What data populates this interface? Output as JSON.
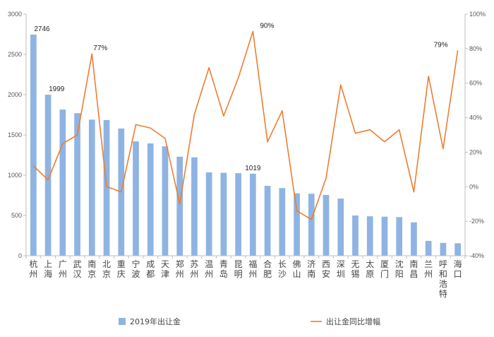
{
  "chart_data": {
    "type": "bar",
    "title": "",
    "xlabel": "",
    "ylabel": "",
    "categories": [
      "杭州",
      "上海",
      "广州",
      "武汉",
      "南京",
      "北京",
      "重庆",
      "宁波",
      "成都",
      "天津",
      "郑州",
      "苏州",
      "温州",
      "青岛",
      "昆明",
      "福州",
      "合肥",
      "长沙",
      "佛山",
      "济南",
      "西安",
      "深圳",
      "无锡",
      "太原",
      "厦门",
      "沈阳",
      "南昌",
      "兰州",
      "呼和浩特",
      "海口"
    ],
    "ylim": [
      0,
      3000
    ],
    "y_ticks": [
      "0",
      "500",
      "1000",
      "1500",
      "2000",
      "2500",
      "3000"
    ],
    "y2lim": [
      -40,
      100
    ],
    "y2_ticks": [
      "-40%",
      "-20%",
      "0%",
      "20%",
      "40%",
      "60%",
      "80%",
      "100%"
    ],
    "series": [
      {
        "name": "2019年出让金",
        "type": "bar",
        "axis": "left",
        "color": "#8fb4e3",
        "values": [
          2746,
          1999,
          1815,
          1770,
          1690,
          1685,
          1580,
          1420,
          1395,
          1358,
          1230,
          1222,
          1035,
          1030,
          1025,
          1019,
          868,
          840,
          775,
          770,
          755,
          710,
          500,
          490,
          485,
          480,
          415,
          185,
          160,
          155
        ]
      },
      {
        "name": "出让金同比增幅",
        "type": "line",
        "axis": "right",
        "color": "#ed7d31",
        "values": [
          12,
          4,
          25,
          30,
          77,
          0,
          -3,
          36,
          34,
          28,
          -10,
          42,
          69,
          41,
          63,
          90,
          26,
          44,
          -14,
          -19,
          5,
          59,
          31,
          33,
          26,
          33,
          -3,
          64,
          22,
          79
        ]
      }
    ],
    "data_labels": [
      {
        "series": 0,
        "index": 0,
        "text": "2746"
      },
      {
        "series": 0,
        "index": 1,
        "text": "1999"
      },
      {
        "series": 0,
        "index": 15,
        "text": "1019"
      },
      {
        "series": 1,
        "index": 4,
        "text": "77%"
      },
      {
        "series": 1,
        "index": 15,
        "text": "90%"
      },
      {
        "series": 1,
        "index": 29,
        "text": "79%"
      }
    ],
    "grid": false,
    "legend": "bottom"
  }
}
